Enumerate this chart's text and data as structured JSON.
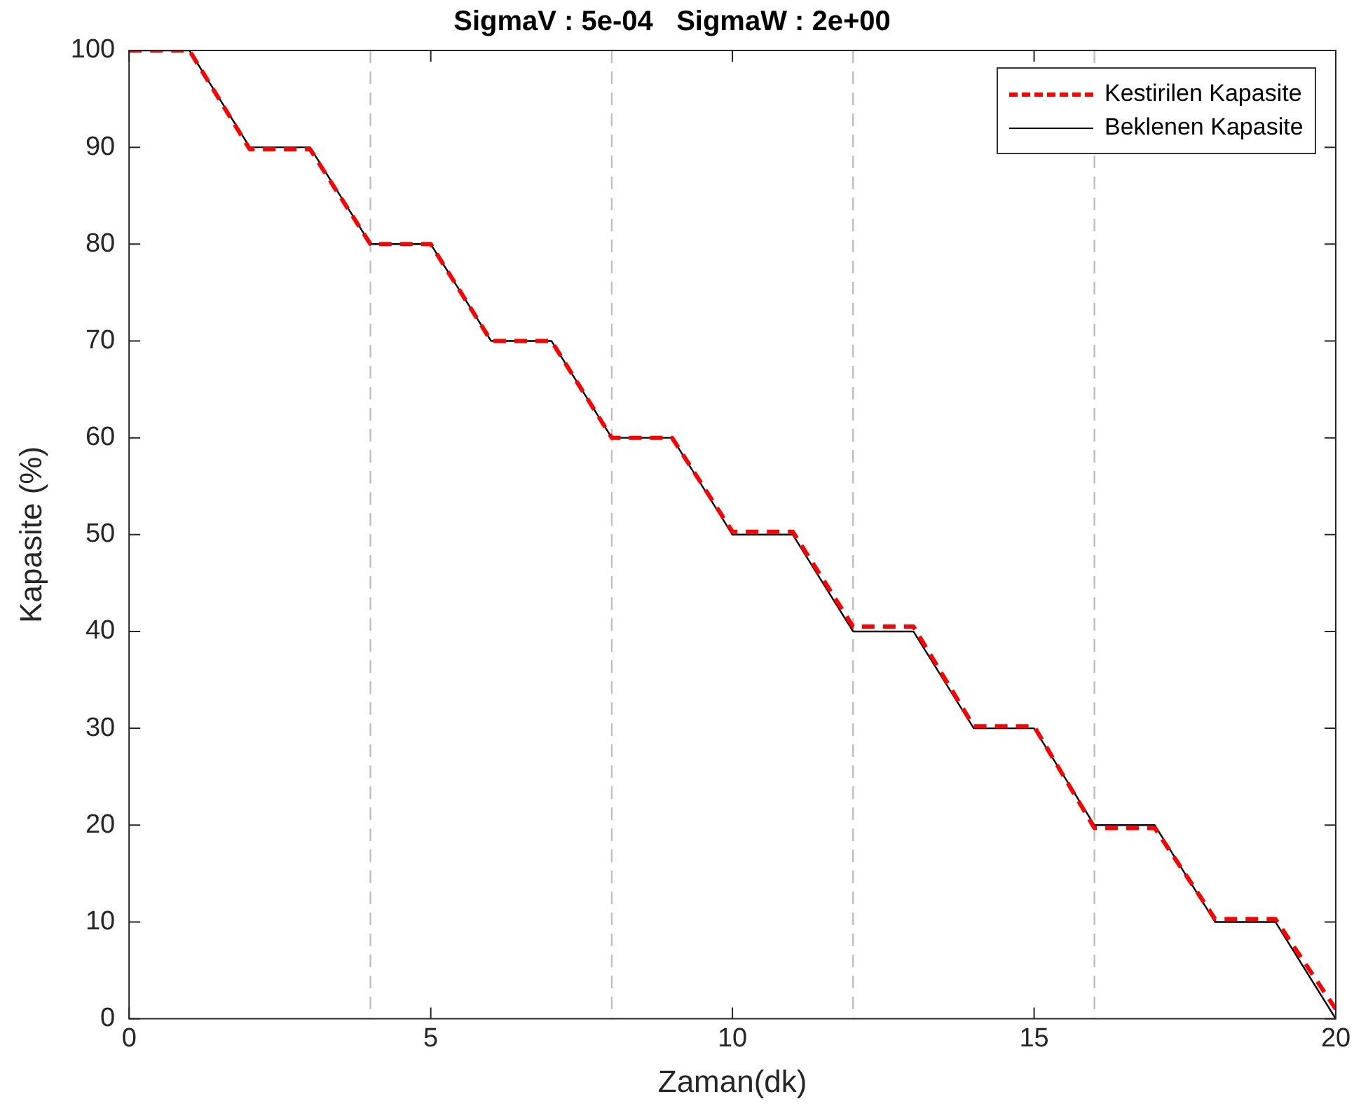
{
  "chart_data": {
    "type": "line",
    "title": "SigmaV : 5e-04   SigmaW : 2e+00",
    "xlabel": "Zaman(dk)",
    "ylabel": "Kapasite (%)",
    "x": [
      0,
      1,
      2,
      3,
      4,
      5,
      6,
      7,
      8,
      9,
      10,
      11,
      12,
      13,
      14,
      15,
      16,
      17,
      18,
      19,
      20
    ],
    "series": [
      {
        "name": "Kestirilen Kapasite",
        "color": "#ff0000",
        "line_style": "dashed",
        "values": [
          100,
          100,
          89.8,
          89.8,
          80,
          80,
          70,
          70,
          60,
          60,
          50.3,
          50.3,
          40.5,
          40.5,
          30.2,
          30.2,
          19.7,
          19.7,
          10.3,
          10.3,
          1
        ]
      },
      {
        "name": "Beklenen Kapasite",
        "color": "#000000",
        "line_style": "solid",
        "values": [
          100,
          100,
          90,
          90,
          80,
          80,
          70,
          70,
          60,
          60,
          50,
          50,
          40,
          40,
          30,
          30,
          20,
          20,
          10,
          10,
          0
        ]
      }
    ],
    "xlim": [
      0,
      20
    ],
    "xticks": [
      0,
      5,
      10,
      15,
      20
    ],
    "ylim": [
      0,
      100
    ],
    "yticks": [
      0,
      10,
      20,
      30,
      40,
      50,
      60,
      70,
      80,
      90,
      100
    ],
    "ref_lines": [
      {
        "axis": "x",
        "value": 4,
        "color": "#bfbfbf",
        "line_style": "dashed"
      },
      {
        "axis": "x",
        "value": 8,
        "color": "#bfbfbf",
        "line_style": "dashed"
      },
      {
        "axis": "x",
        "value": 12,
        "color": "#bfbfbf",
        "line_style": "dashed"
      },
      {
        "axis": "x",
        "value": 16,
        "color": "#bfbfbf",
        "line_style": "dashed"
      }
    ],
    "grid": false,
    "legend": "top right",
    "marker": "none"
  }
}
